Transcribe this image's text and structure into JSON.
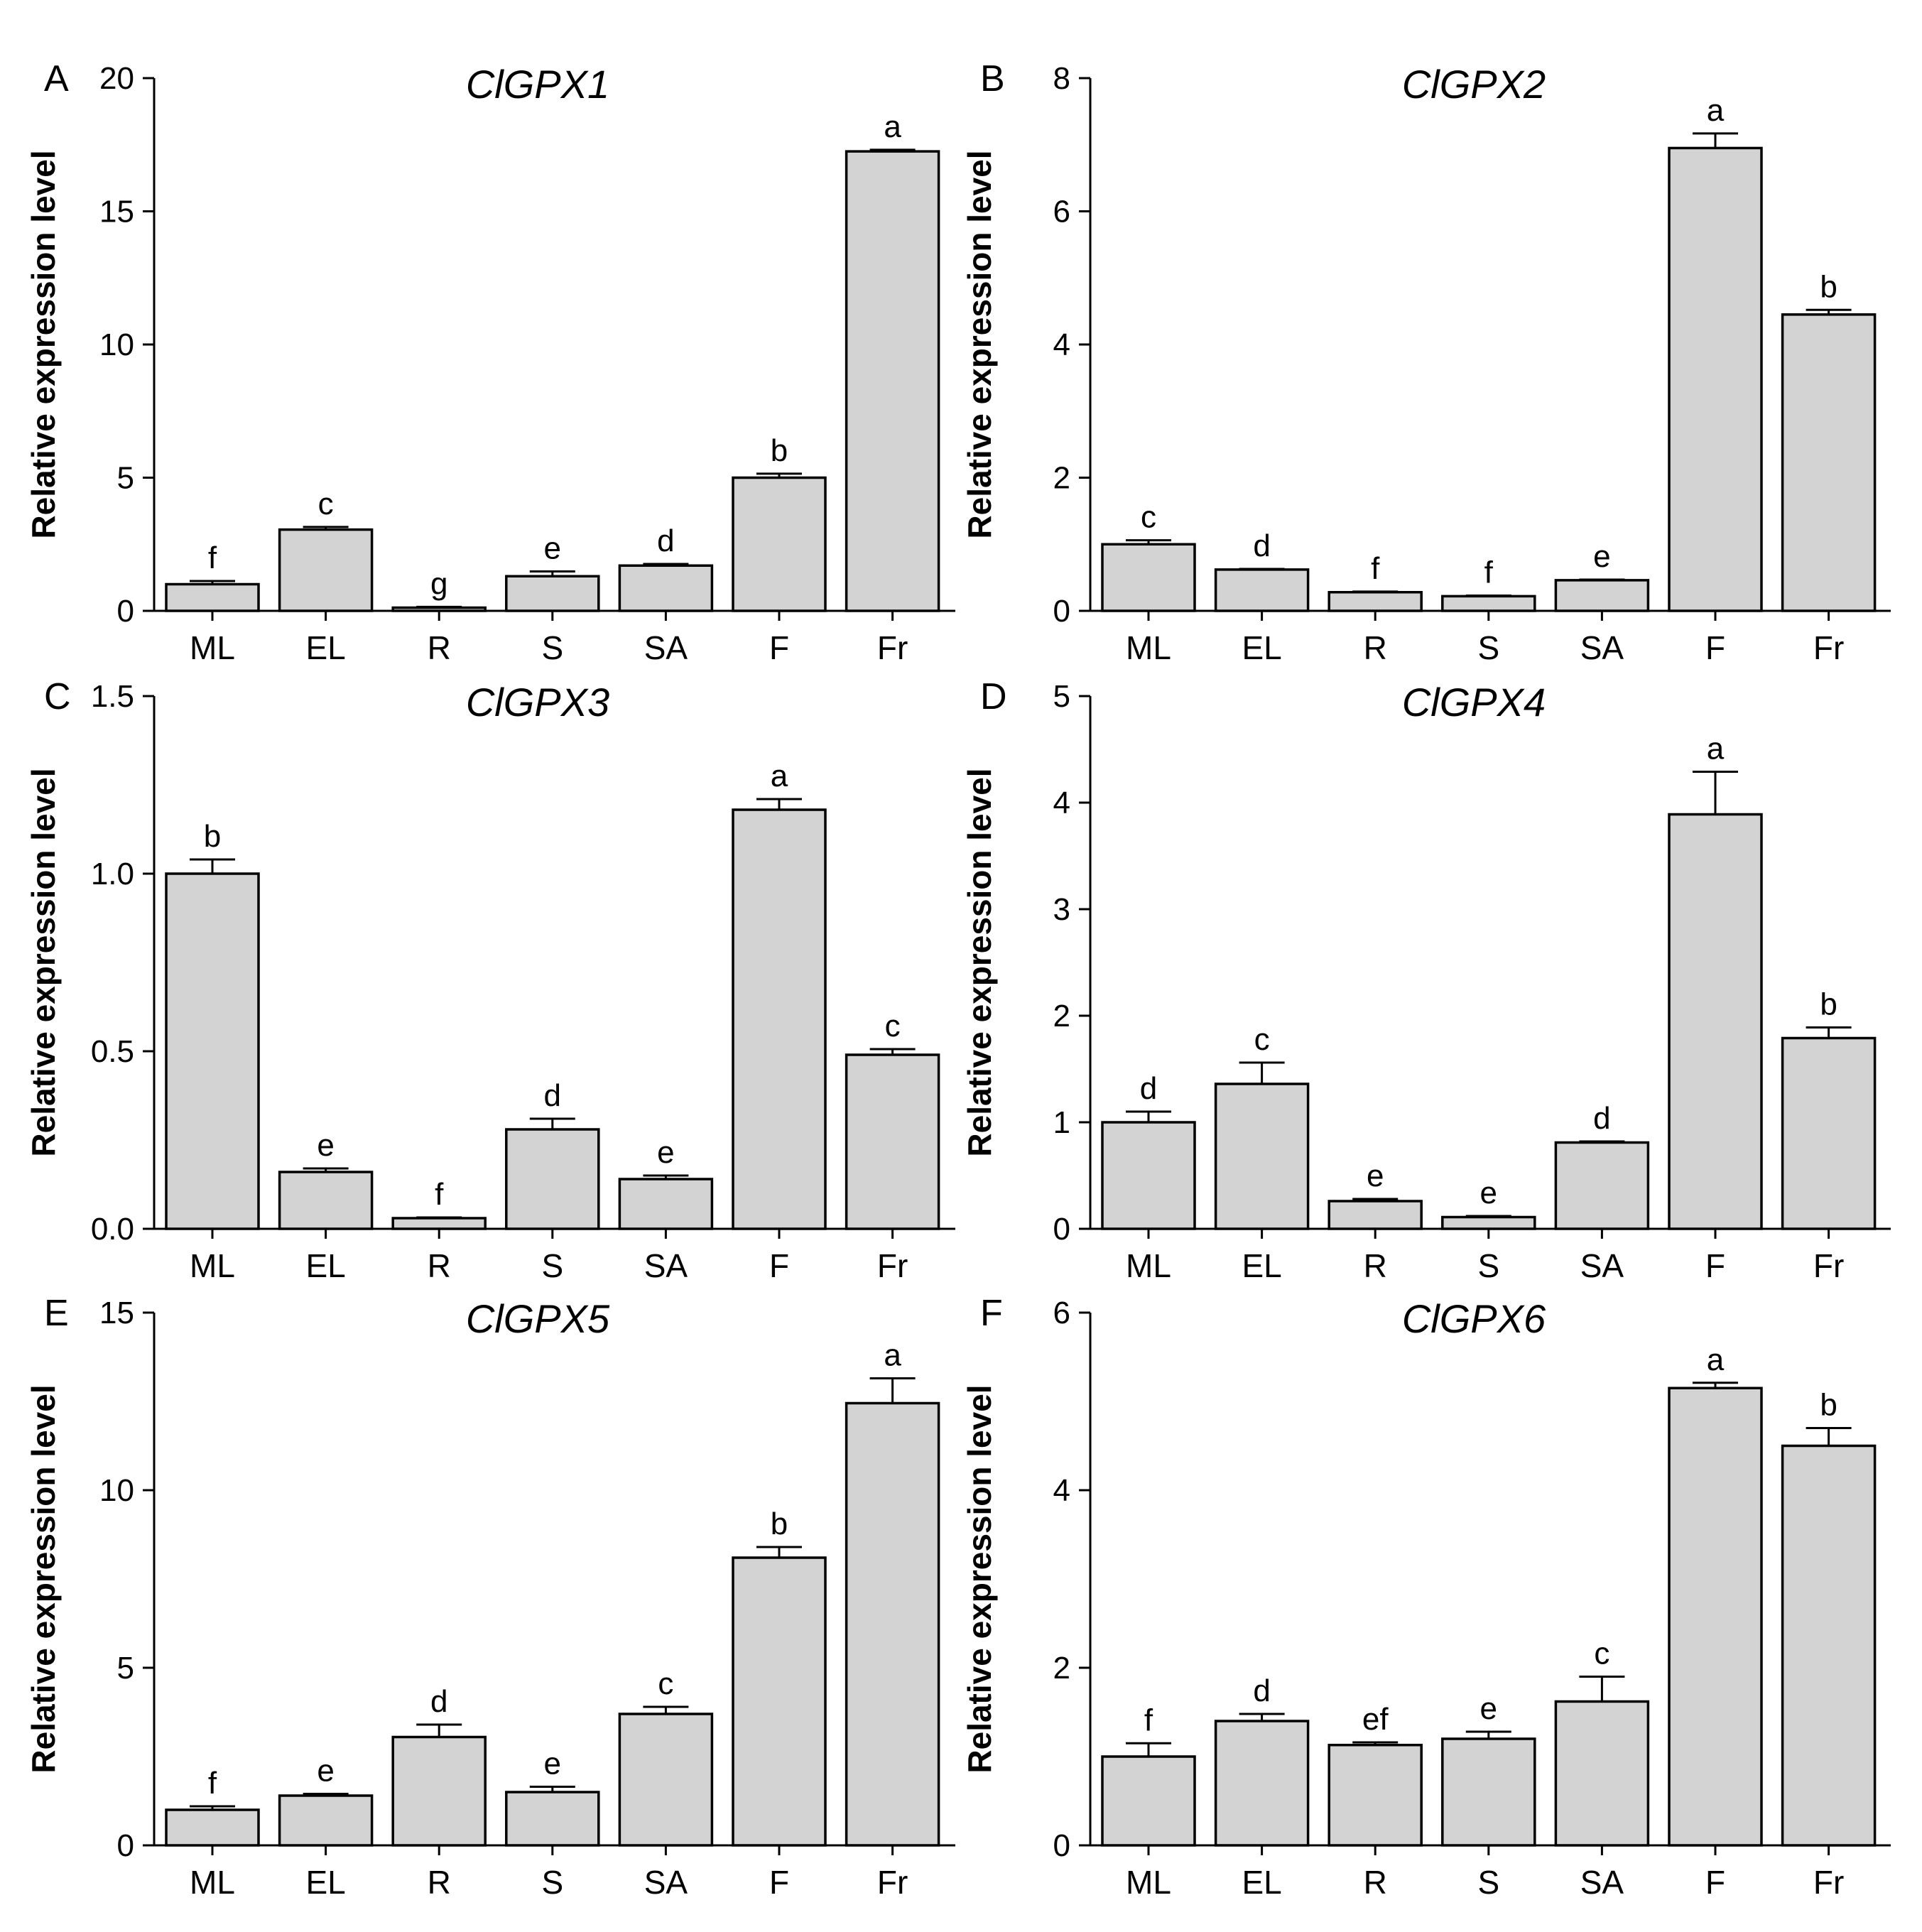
{
  "style": {
    "bar_fill": "#d3d3d3",
    "stroke": "#000000",
    "background": "#ffffff"
  },
  "chart_data": [
    {
      "panel": "A",
      "type": "bar",
      "title": "ClGPX1",
      "ylabel": "Relative expression level",
      "categories": [
        "ML",
        "EL",
        "R",
        "S",
        "SA",
        "F",
        "Fr"
      ],
      "values": [
        1.0,
        3.05,
        0.12,
        1.3,
        1.7,
        5.0,
        17.25
      ],
      "errors": [
        0.12,
        0.1,
        0.03,
        0.18,
        0.06,
        0.15,
        0.06
      ],
      "significance": [
        "f",
        "c",
        "g",
        "e",
        "d",
        "b",
        "a"
      ],
      "ylim": [
        0,
        20
      ],
      "yticks": [
        0,
        5,
        10,
        15,
        20
      ],
      "ytick_labels": [
        "0",
        "5",
        "10",
        "15",
        "20"
      ],
      "grid": false,
      "legend": "none"
    },
    {
      "panel": "B",
      "type": "bar",
      "title": "ClGPX2",
      "ylabel": "Relative expression level",
      "categories": [
        "ML",
        "EL",
        "R",
        "S",
        "SA",
        "F",
        "Fr"
      ],
      "values": [
        1.0,
        0.62,
        0.28,
        0.22,
        0.46,
        6.95,
        4.45
      ],
      "errors": [
        0.06,
        0.01,
        0.01,
        0.01,
        0.01,
        0.22,
        0.07
      ],
      "significance": [
        "c",
        "d",
        "f",
        "f",
        "e",
        "a",
        "b"
      ],
      "ylim": [
        0,
        8
      ],
      "yticks": [
        0,
        2,
        4,
        6,
        8
      ],
      "ytick_labels": [
        "0",
        "2",
        "4",
        "6",
        "8"
      ],
      "grid": false,
      "legend": "none"
    },
    {
      "panel": "C",
      "type": "bar",
      "title": "ClGPX3",
      "ylabel": "Relative expression level",
      "categories": [
        "ML",
        "EL",
        "R",
        "S",
        "SA",
        "F",
        "Fr"
      ],
      "values": [
        1.0,
        0.16,
        0.03,
        0.28,
        0.14,
        1.18,
        0.49
      ],
      "errors": [
        0.04,
        0.01,
        0.002,
        0.03,
        0.01,
        0.03,
        0.016
      ],
      "significance": [
        "b",
        "e",
        "f",
        "d",
        "e",
        "a",
        "c"
      ],
      "ylim": [
        0,
        1.5
      ],
      "yticks": [
        0,
        0.5,
        1.0,
        1.5
      ],
      "ytick_labels": [
        "0.0",
        "0.5",
        "1.0",
        "1.5"
      ],
      "grid": false,
      "legend": "none"
    },
    {
      "panel": "D",
      "type": "bar",
      "title": "ClGPX4",
      "ylabel": "Relative expression level",
      "categories": [
        "ML",
        "EL",
        "R",
        "S",
        "SA",
        "F",
        "Fr"
      ],
      "values": [
        1.0,
        1.36,
        0.26,
        0.11,
        0.81,
        3.89,
        1.79
      ],
      "errors": [
        0.1,
        0.2,
        0.02,
        0.01,
        0.01,
        0.4,
        0.1
      ],
      "significance": [
        "d",
        "c",
        "e",
        "e",
        "d",
        "a",
        "b"
      ],
      "ylim": [
        0,
        5
      ],
      "yticks": [
        0,
        1,
        2,
        3,
        4,
        5
      ],
      "ytick_labels": [
        "0",
        "1",
        "2",
        "3",
        "4",
        "5"
      ],
      "grid": false,
      "legend": "none"
    },
    {
      "panel": "E",
      "type": "bar",
      "title": "ClGPX5",
      "ylabel": "Relative expression level",
      "categories": [
        "ML",
        "EL",
        "R",
        "S",
        "SA",
        "F",
        "Fr"
      ],
      "values": [
        1.0,
        1.4,
        3.05,
        1.5,
        3.7,
        8.1,
        12.45
      ],
      "errors": [
        0.1,
        0.05,
        0.35,
        0.15,
        0.2,
        0.3,
        0.7
      ],
      "significance": [
        "f",
        "e",
        "d",
        "e",
        "c",
        "b",
        "a"
      ],
      "ylim": [
        0,
        15
      ],
      "yticks": [
        0,
        5,
        10,
        15
      ],
      "ytick_labels": [
        "0",
        "5",
        "10",
        "15"
      ],
      "grid": false,
      "legend": "none"
    },
    {
      "panel": "F",
      "type": "bar",
      "title": "ClGPX6",
      "ylabel": "Relative expression level",
      "categories": [
        "ML",
        "EL",
        "R",
        "S",
        "SA",
        "F",
        "Fr"
      ],
      "values": [
        1.0,
        1.4,
        1.13,
        1.2,
        1.62,
        5.15,
        4.5
      ],
      "errors": [
        0.15,
        0.08,
        0.03,
        0.08,
        0.28,
        0.06,
        0.2
      ],
      "significance": [
        "f",
        "d",
        "ef",
        "e",
        "c",
        "a",
        "b"
      ],
      "ylim": [
        0,
        6
      ],
      "yticks": [
        0,
        2,
        4,
        6
      ],
      "ytick_labels": [
        "0",
        "2",
        "4",
        "6"
      ],
      "grid": false,
      "legend": "none"
    }
  ]
}
